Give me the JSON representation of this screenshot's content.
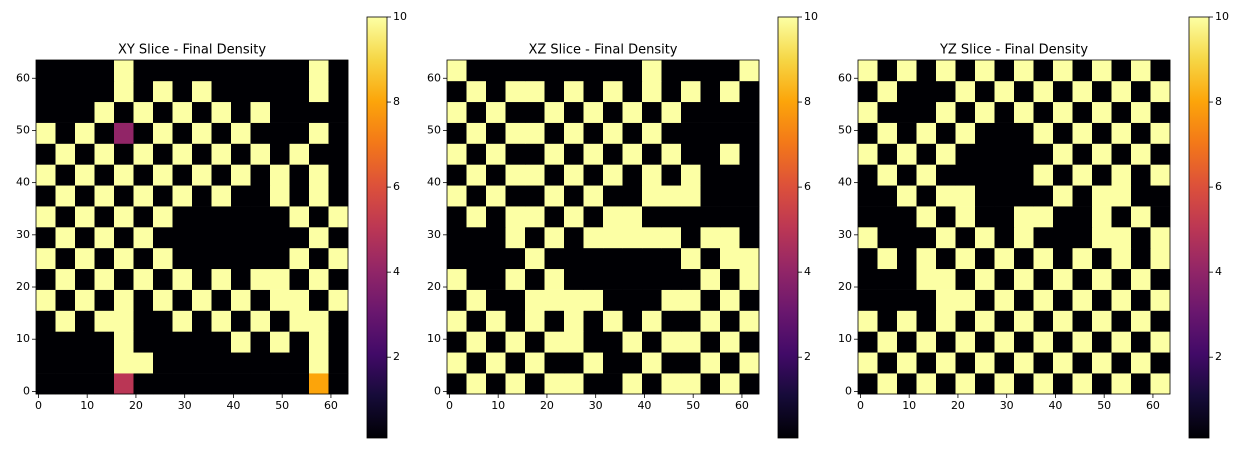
{
  "chart_data": [
    {
      "type": "heatmap",
      "title": "XY Slice - Final Density",
      "colormap": "inferno",
      "xlim": [
        -0.5,
        63.5
      ],
      "ylim": [
        -0.5,
        63.5
      ],
      "xticks": [
        0,
        10,
        20,
        30,
        40,
        50,
        60
      ],
      "yticks": [
        0,
        10,
        20,
        30,
        40,
        50,
        60
      ],
      "clim": [
        0.1,
        10
      ],
      "cticks": [
        2,
        4,
        6,
        8,
        10
      ],
      "z": [
        [
          0,
          0,
          0,
          0,
          5,
          0,
          0,
          0,
          0,
          0,
          0,
          0,
          0,
          0,
          8,
          0
        ],
        [
          0,
          0,
          0,
          0,
          10,
          10,
          0,
          0,
          0,
          0,
          0,
          0,
          0,
          0,
          10,
          0
        ],
        [
          0,
          0,
          0,
          0,
          10,
          0,
          0,
          0,
          0,
          0,
          10,
          0,
          10,
          0,
          10,
          0
        ],
        [
          0,
          10,
          0,
          10,
          10,
          0,
          0,
          10,
          0,
          10,
          0,
          10,
          0,
          10,
          10,
          0
        ],
        [
          10,
          0,
          10,
          0,
          10,
          0,
          10,
          0,
          10,
          0,
          10,
          0,
          10,
          10,
          0,
          10
        ],
        [
          0,
          10,
          0,
          10,
          0,
          10,
          0,
          10,
          0,
          10,
          0,
          10,
          10,
          0,
          10,
          0
        ],
        [
          10,
          0,
          10,
          0,
          10,
          0,
          10,
          0,
          0,
          0,
          0,
          0,
          0,
          10,
          0,
          10
        ],
        [
          0,
          10,
          0,
          10,
          0,
          10,
          0,
          0,
          0,
          0,
          0,
          0,
          0,
          0,
          10,
          0
        ],
        [
          10,
          0,
          10,
          0,
          10,
          0,
          10,
          0,
          0,
          0,
          0,
          0,
          0,
          10,
          0,
          10
        ],
        [
          0,
          10,
          0,
          10,
          0,
          10,
          0,
          10,
          0,
          10,
          0,
          0,
          10,
          0,
          10,
          0
        ],
        [
          10,
          0,
          10,
          0,
          10,
          0,
          10,
          0,
          10,
          0,
          10,
          0,
          10,
          0,
          10,
          0
        ],
        [
          0,
          10,
          0,
          10,
          0,
          10,
          0,
          10,
          0,
          10,
          0,
          10,
          0,
          10,
          0,
          0
        ],
        [
          10,
          0,
          10,
          0,
          4,
          0,
          10,
          0,
          10,
          0,
          10,
          0,
          0,
          0,
          10,
          0
        ],
        [
          0,
          0,
          0,
          10,
          0,
          10,
          0,
          10,
          0,
          10,
          0,
          10,
          0,
          0,
          0,
          0
        ],
        [
          0,
          0,
          0,
          0,
          10,
          0,
          10,
          0,
          10,
          0,
          0,
          0,
          0,
          0,
          10,
          0
        ],
        [
          0,
          0,
          0,
          0,
          10,
          0,
          0,
          0,
          0,
          0,
          0,
          0,
          0,
          0,
          10,
          0
        ]
      ]
    },
    {
      "type": "heatmap",
      "title": "XZ Slice - Final Density",
      "colormap": "inferno",
      "xlim": [
        -0.5,
        63.5
      ],
      "ylim": [
        -0.5,
        63.5
      ],
      "xticks": [
        0,
        10,
        20,
        30,
        40,
        50,
        60
      ],
      "yticks": [
        0,
        10,
        20,
        30,
        40,
        50,
        60
      ],
      "clim": [
        0.1,
        10
      ],
      "cticks": [
        2,
        4,
        6,
        8,
        10
      ],
      "z": [
        [
          0,
          10,
          0,
          10,
          0,
          10,
          10,
          0,
          0,
          10,
          0,
          10,
          10,
          0,
          10,
          0
        ],
        [
          10,
          0,
          10,
          0,
          10,
          0,
          0,
          10,
          0,
          0,
          10,
          0,
          0,
          10,
          0,
          10
        ],
        [
          0,
          10,
          0,
          10,
          0,
          10,
          10,
          0,
          0,
          10,
          0,
          10,
          10,
          0,
          10,
          0
        ],
        [
          10,
          0,
          10,
          0,
          10,
          0,
          10,
          0,
          10,
          0,
          10,
          0,
          0,
          10,
          0,
          10
        ],
        [
          0,
          10,
          0,
          0,
          10,
          10,
          10,
          10,
          0,
          0,
          0,
          10,
          10,
          0,
          10,
          0
        ],
        [
          10,
          0,
          0,
          10,
          0,
          10,
          0,
          0,
          0,
          0,
          0,
          0,
          0,
          10,
          0,
          10
        ],
        [
          0,
          0,
          0,
          0,
          10,
          0,
          0,
          0,
          0,
          0,
          0,
          0,
          10,
          0,
          10,
          10
        ],
        [
          0,
          0,
          0,
          10,
          0,
          10,
          0,
          10,
          10,
          10,
          10,
          10,
          0,
          10,
          10,
          0
        ],
        [
          0,
          10,
          0,
          10,
          10,
          0,
          10,
          0,
          10,
          10,
          0,
          0,
          0,
          0,
          0,
          0
        ],
        [
          10,
          0,
          10,
          0,
          0,
          10,
          0,
          10,
          0,
          0,
          10,
          10,
          10,
          0,
          0,
          0
        ],
        [
          0,
          10,
          0,
          10,
          10,
          0,
          10,
          0,
          10,
          0,
          10,
          0,
          10,
          0,
          0,
          0
        ],
        [
          10,
          0,
          10,
          0,
          0,
          10,
          0,
          10,
          0,
          10,
          0,
          10,
          0,
          0,
          10,
          0
        ],
        [
          0,
          10,
          0,
          10,
          10,
          0,
          10,
          0,
          10,
          0,
          10,
          0,
          0,
          0,
          0,
          0
        ],
        [
          10,
          0,
          10,
          0,
          0,
          10,
          0,
          10,
          0,
          10,
          0,
          10,
          0,
          0,
          0,
          0
        ],
        [
          0,
          10,
          0,
          10,
          10,
          0,
          10,
          0,
          10,
          0,
          10,
          0,
          10,
          0,
          10,
          0
        ],
        [
          10,
          0,
          0,
          0,
          0,
          0,
          0,
          0,
          0,
          0,
          10,
          0,
          0,
          0,
          0,
          10
        ]
      ]
    },
    {
      "type": "heatmap",
      "title": "YZ Slice - Final Density",
      "colormap": "inferno",
      "xlim": [
        -0.5,
        63.5
      ],
      "ylim": [
        -0.5,
        63.5
      ],
      "xticks": [
        0,
        10,
        20,
        30,
        40,
        50,
        60
      ],
      "yticks": [
        0,
        10,
        20,
        30,
        40,
        50,
        60
      ],
      "clim": [
        0.1,
        10
      ],
      "cticks": [
        2,
        4,
        6,
        8,
        10
      ],
      "z": [
        [
          0,
          10,
          0,
          10,
          0,
          10,
          0,
          10,
          0,
          10,
          0,
          10,
          0,
          10,
          0,
          10
        ],
        [
          10,
          0,
          10,
          0,
          10,
          0,
          10,
          0,
          10,
          0,
          10,
          0,
          10,
          0,
          10,
          0
        ],
        [
          0,
          10,
          0,
          10,
          0,
          10,
          0,
          10,
          0,
          10,
          0,
          10,
          0,
          10,
          0,
          10
        ],
        [
          10,
          0,
          10,
          0,
          10,
          0,
          10,
          0,
          10,
          0,
          10,
          0,
          10,
          0,
          10,
          0
        ],
        [
          0,
          0,
          0,
          0,
          10,
          10,
          0,
          10,
          0,
          10,
          0,
          10,
          0,
          10,
          0,
          10
        ],
        [
          0,
          0,
          0,
          10,
          10,
          0,
          10,
          0,
          10,
          0,
          10,
          0,
          10,
          0,
          10,
          0
        ],
        [
          0,
          10,
          0,
          10,
          0,
          10,
          0,
          10,
          0,
          10,
          0,
          10,
          0,
          10,
          0,
          10
        ],
        [
          10,
          0,
          0,
          0,
          10,
          0,
          10,
          0,
          10,
          0,
          0,
          0,
          10,
          10,
          0,
          10
        ],
        [
          0,
          0,
          0,
          10,
          0,
          10,
          0,
          0,
          10,
          10,
          0,
          0,
          10,
          0,
          10,
          0
        ],
        [
          0,
          0,
          10,
          0,
          10,
          10,
          0,
          0,
          0,
          0,
          10,
          0,
          10,
          10,
          0,
          0
        ],
        [
          0,
          10,
          0,
          10,
          0,
          0,
          0,
          0,
          0,
          10,
          0,
          10,
          0,
          10,
          0,
          10
        ],
        [
          10,
          0,
          10,
          0,
          10,
          0,
          0,
          0,
          0,
          0,
          10,
          0,
          10,
          0,
          10,
          0
        ],
        [
          0,
          10,
          0,
          10,
          0,
          10,
          0,
          0,
          0,
          10,
          0,
          10,
          0,
          10,
          0,
          10
        ],
        [
          10,
          0,
          0,
          0,
          10,
          0,
          10,
          0,
          10,
          0,
          10,
          0,
          10,
          0,
          10,
          0
        ],
        [
          0,
          10,
          0,
          0,
          0,
          10,
          0,
          10,
          0,
          10,
          0,
          10,
          0,
          10,
          0,
          10
        ],
        [
          10,
          0,
          10,
          0,
          10,
          0,
          10,
          0,
          10,
          0,
          10,
          0,
          10,
          0,
          10,
          0
        ]
      ]
    }
  ]
}
